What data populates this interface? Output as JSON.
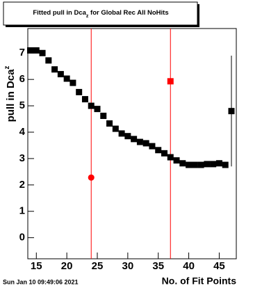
{
  "chart_data": {
    "type": "scatter",
    "title": [
      "Fitted pull in Dca",
      "z",
      " for Global Rec All NoHits"
    ],
    "x_label": "No. of Fit Points",
    "y_label": [
      "pull in Dca",
      "z"
    ],
    "timestamp": "Sun Jan 10 09:49:06 2021",
    "xlim": [
      13.6,
      47.8
    ],
    "ylim": [
      -0.8,
      7.93
    ],
    "xticks": [
      15,
      20,
      25,
      30,
      35,
      40,
      45
    ],
    "yticks": [
      0,
      1,
      2,
      3,
      4,
      5,
      6,
      7
    ],
    "vlines": [
      24,
      37
    ],
    "vline_color": "#ff0000",
    "series": [
      {
        "color": "#000000",
        "marker": "square",
        "x": [
          14,
          15,
          16,
          17,
          18,
          19,
          20,
          21,
          22,
          23,
          24,
          25,
          26,
          27,
          28,
          29,
          30,
          31,
          32,
          33,
          34,
          35,
          36,
          37,
          38,
          39,
          40,
          41,
          42,
          43,
          44,
          45,
          46,
          47
        ],
        "values": [
          7.1,
          7.1,
          7.0,
          6.72,
          6.38,
          6.2,
          6.03,
          5.87,
          5.52,
          5.25,
          5.0,
          4.88,
          4.62,
          4.33,
          4.13,
          3.95,
          3.85,
          3.74,
          3.63,
          3.58,
          3.47,
          3.32,
          3.2,
          3.05,
          2.93,
          2.82,
          2.76,
          2.76,
          2.76,
          2.79,
          2.79,
          2.82,
          2.76,
          4.8
        ],
        "errors": [
          null,
          null,
          null,
          null,
          null,
          null,
          null,
          null,
          null,
          null,
          null,
          null,
          null,
          null,
          null,
          null,
          null,
          null,
          null,
          null,
          null,
          null,
          null,
          null,
          null,
          null,
          null,
          null,
          null,
          null,
          null,
          null,
          null,
          2.1
        ]
      },
      {
        "color": "#ff0000",
        "marker": "circle",
        "x": [
          24
        ],
        "values": [
          2.28
        ]
      },
      {
        "color": "#ff0000",
        "marker": "square",
        "x": [
          37
        ],
        "values": [
          5.93
        ]
      }
    ]
  }
}
